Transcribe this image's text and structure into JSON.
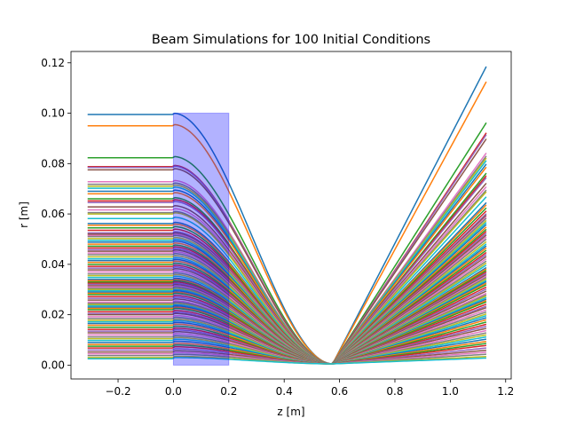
{
  "chart_data": {
    "type": "line",
    "title": "Beam Simulations for 100 Initial Conditions",
    "xlabel": "z [m]",
    "ylabel": "r [m]",
    "xlim": [
      -0.37,
      1.22
    ],
    "ylim": [
      -0.0055,
      0.1245
    ],
    "xticks": [
      -0.2,
      0.0,
      0.2,
      0.4,
      0.6,
      0.8,
      1.0,
      1.2
    ],
    "xtick_labels": [
      "−0.2",
      "0.0",
      "0.2",
      "0.4",
      "0.6",
      "0.8",
      "1.0",
      "1.2"
    ],
    "yticks": [
      0.0,
      0.02,
      0.04,
      0.06,
      0.08,
      0.1,
      0.12
    ],
    "ytick_labels": [
      "0.00",
      "0.02",
      "0.04",
      "0.06",
      "0.08",
      "0.10",
      "0.12"
    ],
    "grid": false,
    "legend": "none",
    "z_start": -0.31,
    "z_end": 1.13,
    "lens_region": {
      "z_min": 0.0,
      "z_max": 0.2,
      "r_min": 0.0,
      "r_max": 0.1,
      "color": "#0000ff",
      "alpha": 0.3
    },
    "focus_z": 0.575,
    "initial_r": [
      0.0995,
      0.095,
      0.0823,
      0.0788,
      0.0785,
      0.0775,
      0.0728,
      0.0718,
      0.071,
      0.0702,
      0.069,
      0.068,
      0.066,
      0.0652,
      0.0645,
      0.0628,
      0.0616,
      0.0605,
      0.06,
      0.0582,
      0.0562,
      0.0555,
      0.0545,
      0.0535,
      0.0525,
      0.052,
      0.0515,
      0.051,
      0.0502,
      0.0495,
      0.0488,
      0.048,
      0.0472,
      0.0465,
      0.0458,
      0.0452,
      0.0445,
      0.0438,
      0.043,
      0.0422,
      0.0415,
      0.0408,
      0.04,
      0.0392,
      0.0385,
      0.0378,
      0.037,
      0.0362,
      0.0355,
      0.0348,
      0.034,
      0.0335,
      0.033,
      0.0325,
      0.032,
      0.0315,
      0.031,
      0.0305,
      0.03,
      0.0295,
      0.029,
      0.0285,
      0.028,
      0.0272,
      0.0265,
      0.0258,
      0.025,
      0.0245,
      0.024,
      0.0235,
      0.023,
      0.0225,
      0.022,
      0.0212,
      0.0205,
      0.02,
      0.0192,
      0.0185,
      0.0178,
      0.0172,
      0.0165,
      0.0158,
      0.015,
      0.0142,
      0.0135,
      0.0128,
      0.012,
      0.0112,
      0.0105,
      0.0098,
      0.009,
      0.0082,
      0.0075,
      0.0068,
      0.006,
      0.0052,
      0.0045,
      0.0038,
      0.003,
      0.0025
    ],
    "final_r": [
      0.1185,
      0.1125,
      0.0962,
      0.0922,
      0.0915,
      0.0898,
      0.0842,
      0.083,
      0.0822,
      0.0812,
      0.0798,
      0.0786,
      0.0762,
      0.0752,
      0.0744,
      0.0722,
      0.0708,
      0.0695,
      0.0688,
      0.0668,
      0.0645,
      0.0636,
      0.0624,
      0.0612,
      0.0601,
      0.0595,
      0.0589,
      0.0583,
      0.0574,
      0.0566,
      0.0558,
      0.0548,
      0.0539,
      0.0531,
      0.0523,
      0.0516,
      0.0508,
      0.05,
      0.049,
      0.0481,
      0.0473,
      0.0465,
      0.0456,
      0.0447,
      0.0439,
      0.0431,
      0.0422,
      0.0413,
      0.0405,
      0.0397,
      0.0387,
      0.0382,
      0.0376,
      0.037,
      0.0365,
      0.0359,
      0.0353,
      0.0348,
      0.0342,
      0.0336,
      0.0331,
      0.0325,
      0.0319,
      0.031,
      0.0302,
      0.0294,
      0.0285,
      0.0279,
      0.0274,
      0.0268,
      0.0262,
      0.0256,
      0.0251,
      0.0242,
      0.0234,
      0.0228,
      0.0219,
      0.0211,
      0.0203,
      0.0196,
      0.0188,
      0.018,
      0.0171,
      0.0162,
      0.0154,
      0.0146,
      0.0137,
      0.0128,
      0.012,
      0.0112,
      0.0103,
      0.0094,
      0.0086,
      0.0078,
      0.0068,
      0.0059,
      0.0051,
      0.0043,
      0.0034,
      0.0028
    ],
    "colors": [
      "#1f77b4",
      "#ff7f0e",
      "#2ca02c",
      "#d62728",
      "#9467bd",
      "#8c564b",
      "#e377c2",
      "#7f7f7f",
      "#bcbd22",
      "#17becf"
    ]
  }
}
